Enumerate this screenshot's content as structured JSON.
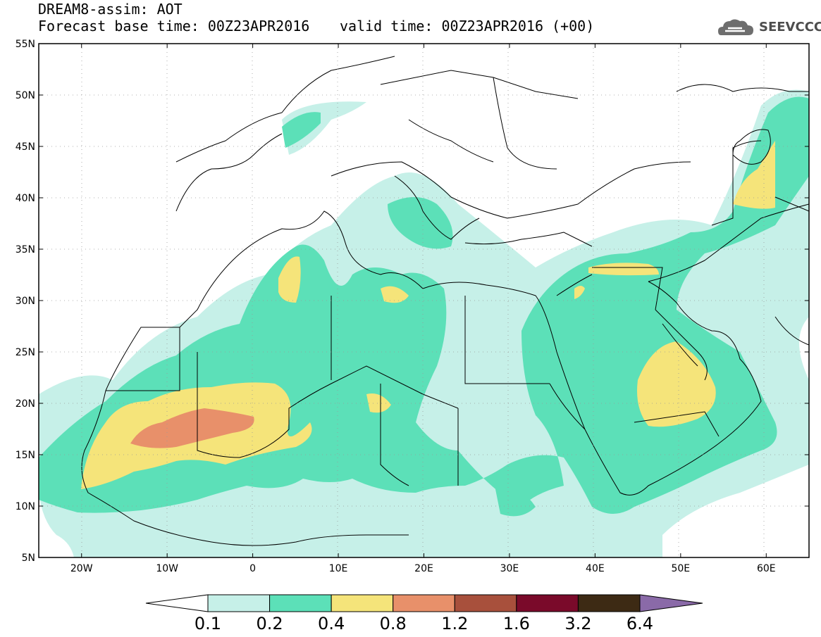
{
  "title": {
    "line1": "DREAM8-assim: AOT",
    "line2_base": "Forecast base time: 00Z23APR2016",
    "line2_valid": "valid time: 00Z23APR2016 (+00)"
  },
  "logo": {
    "text": "SEEVCCC",
    "icon": "cloud-icon"
  },
  "map": {
    "variable": "AOT",
    "lat_range": [
      5,
      55
    ],
    "lon_range": [
      -25,
      65
    ],
    "lat_labels": [
      "55N",
      "50N",
      "45N",
      "40N",
      "35N",
      "30N",
      "25N",
      "20N",
      "15N",
      "10N",
      "5N"
    ],
    "lon_labels": [
      "20W",
      "10W",
      "0",
      "10E",
      "20E",
      "30E",
      "40E",
      "50E",
      "60E"
    ]
  },
  "colorbar": {
    "labels": [
      "0.1",
      "0.2",
      "0.4",
      "0.8",
      "1.2",
      "1.6",
      "3.2",
      "6.4"
    ],
    "colors": [
      "#c6f0e8",
      "#5ce0b8",
      "#f5e47a",
      "#e8906a",
      "#a8503c",
      "#7a0a2a",
      "#3d2a14",
      "#8a6aa8"
    ]
  }
}
